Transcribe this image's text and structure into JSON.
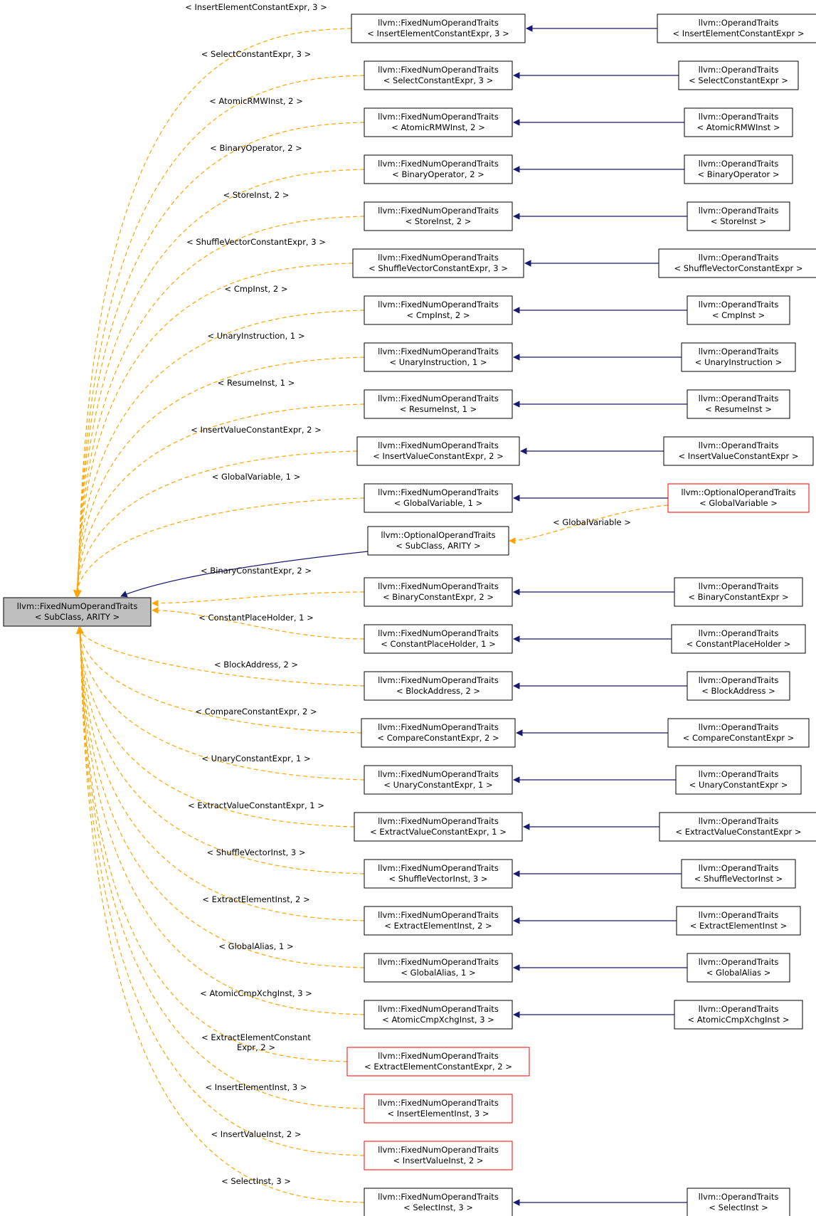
{
  "colors": {
    "background": "#ffffff",
    "root_fill": "#bfbfbf",
    "node_border": "#000000",
    "undocumented_border": "#ff0000",
    "template_edge": "#ffa500",
    "inherit_edge": "#191970"
  },
  "root": {
    "line1": "llvm::FixedNumOperandTraits",
    "line2": "< SubClass, ARITY >"
  },
  "optional": {
    "line1": "llvm::OptionalOperandTraits",
    "line2": "< SubClass, ARITY >"
  },
  "rows": [
    {
      "label": "< InsertElementConstantExpr, 3 >",
      "mid": [
        "llvm::FixedNumOperandTraits",
        "< InsertElementConstantExpr, 3 >"
      ],
      "right": [
        "llvm::OperandTraits",
        "< InsertElementConstantExpr >"
      ],
      "mid_red": false
    },
    {
      "label": "< SelectConstantExpr, 3 >",
      "mid": [
        "llvm::FixedNumOperandTraits",
        "< SelectConstantExpr, 3 >"
      ],
      "right": [
        "llvm::OperandTraits",
        "< SelectConstantExpr >"
      ],
      "mid_red": false
    },
    {
      "label": "< AtomicRMWInst, 2 >",
      "mid": [
        "llvm::FixedNumOperandTraits",
        "< AtomicRMWInst, 2 >"
      ],
      "right": [
        "llvm::OperandTraits",
        "< AtomicRMWInst >"
      ],
      "mid_red": false
    },
    {
      "label": "< BinaryOperator, 2 >",
      "mid": [
        "llvm::FixedNumOperandTraits",
        "< BinaryOperator, 2 >"
      ],
      "right": [
        "llvm::OperandTraits",
        "< BinaryOperator >"
      ],
      "mid_red": false
    },
    {
      "label": "< StoreInst, 2 >",
      "mid": [
        "llvm::FixedNumOperandTraits",
        "< StoreInst, 2 >"
      ],
      "right": [
        "llvm::OperandTraits",
        "< StoreInst >"
      ],
      "mid_red": false
    },
    {
      "label": "< ShuffleVectorConstantExpr, 3 >",
      "mid": [
        "llvm::FixedNumOperandTraits",
        "< ShuffleVectorConstantExpr, 3 >"
      ],
      "right": [
        "llvm::OperandTraits",
        "< ShuffleVectorConstantExpr >"
      ],
      "mid_red": false
    },
    {
      "label": "< CmpInst, 2 >",
      "mid": [
        "llvm::FixedNumOperandTraits",
        "< CmpInst, 2 >"
      ],
      "right": [
        "llvm::OperandTraits",
        "< CmpInst >"
      ],
      "mid_red": false
    },
    {
      "label": "< UnaryInstruction, 1 >",
      "mid": [
        "llvm::FixedNumOperandTraits",
        "< UnaryInstruction, 1 >"
      ],
      "right": [
        "llvm::OperandTraits",
        "< UnaryInstruction >"
      ],
      "mid_red": false
    },
    {
      "label": "< ResumeInst, 1 >",
      "mid": [
        "llvm::FixedNumOperandTraits",
        "< ResumeInst, 1 >"
      ],
      "right": [
        "llvm::OperandTraits",
        "< ResumeInst >"
      ],
      "mid_red": false
    },
    {
      "label": "< InsertValueConstantExpr, 2 >",
      "mid": [
        "llvm::FixedNumOperandTraits",
        "< InsertValueConstantExpr, 2 >"
      ],
      "right": [
        "llvm::OperandTraits",
        "< InsertValueConstantExpr >"
      ],
      "mid_red": false
    },
    {
      "label": "< GlobalVariable, 1 >",
      "mid": [
        "llvm::FixedNumOperandTraits",
        "< GlobalVariable, 1 >"
      ],
      "right": [
        "llvm::OptionalOperandTraits",
        "< GlobalVariable >"
      ],
      "mid_red": false,
      "right_red": true,
      "right_label": "< GlobalVariable >"
    },
    {
      "label": "< BinaryConstantExpr, 2 >",
      "mid": [
        "llvm::FixedNumOperandTraits",
        "< BinaryConstantExpr, 2 >"
      ],
      "right": [
        "llvm::OperandTraits",
        "< BinaryConstantExpr >"
      ],
      "mid_red": false
    },
    {
      "label": "< ConstantPlaceHolder, 1 >",
      "mid": [
        "llvm::FixedNumOperandTraits",
        "< ConstantPlaceHolder, 1 >"
      ],
      "right": [
        "llvm::OperandTraits",
        "< ConstantPlaceHolder >"
      ],
      "mid_red": false
    },
    {
      "label": "< BlockAddress, 2 >",
      "mid": [
        "llvm::FixedNumOperandTraits",
        "< BlockAddress, 2 >"
      ],
      "right": [
        "llvm::OperandTraits",
        "< BlockAddress >"
      ],
      "mid_red": false
    },
    {
      "label": "< CompareConstantExpr, 2 >",
      "mid": [
        "llvm::FixedNumOperandTraits",
        "< CompareConstantExpr, 2 >"
      ],
      "right": [
        "llvm::OperandTraits",
        "< CompareConstantExpr >"
      ],
      "mid_red": false
    },
    {
      "label": "< UnaryConstantExpr, 1 >",
      "mid": [
        "llvm::FixedNumOperandTraits",
        "< UnaryConstantExpr, 1 >"
      ],
      "right": [
        "llvm::OperandTraits",
        "< UnaryConstantExpr >"
      ],
      "mid_red": false
    },
    {
      "label": "< ExtractValueConstantExpr, 1 >",
      "mid": [
        "llvm::FixedNumOperandTraits",
        "< ExtractValueConstantExpr, 1 >"
      ],
      "right": [
        "llvm::OperandTraits",
        "< ExtractValueConstantExpr >"
      ],
      "mid_red": false
    },
    {
      "label": "< ShuffleVectorInst, 3 >",
      "mid": [
        "llvm::FixedNumOperandTraits",
        "< ShuffleVectorInst, 3 >"
      ],
      "right": [
        "llvm::OperandTraits",
        "< ShuffleVectorInst >"
      ],
      "mid_red": false
    },
    {
      "label": "< ExtractElementInst, 2 >",
      "mid": [
        "llvm::FixedNumOperandTraits",
        "< ExtractElementInst, 2 >"
      ],
      "right": [
        "llvm::OperandTraits",
        "< ExtractElementInst >"
      ],
      "mid_red": false
    },
    {
      "label": "< GlobalAlias, 1 >",
      "mid": [
        "llvm::FixedNumOperandTraits",
        "< GlobalAlias, 1 >"
      ],
      "right": [
        "llvm::OperandTraits",
        "< GlobalAlias >"
      ],
      "mid_red": false
    },
    {
      "label": "< AtomicCmpXchgInst, 3 >",
      "mid": [
        "llvm::FixedNumOperandTraits",
        "< AtomicCmpXchgInst, 3 >"
      ],
      "right": [
        "llvm::OperandTraits",
        "< AtomicCmpXchgInst >"
      ],
      "mid_red": false
    },
    {
      "label": "< ExtractElementConstant",
      "label2": "Expr, 2 >",
      "mid": [
        "llvm::FixedNumOperandTraits",
        "< ExtractElementConstantExpr, 2 >"
      ],
      "right": null,
      "mid_red": true
    },
    {
      "label": "< InsertElementInst, 3 >",
      "mid": [
        "llvm::FixedNumOperandTraits",
        "< InsertElementInst, 3 >"
      ],
      "right": null,
      "mid_red": true
    },
    {
      "label": "< InsertValueInst, 2 >",
      "mid": [
        "llvm::FixedNumOperandTraits",
        "< InsertValueInst, 2 >"
      ],
      "right": null,
      "mid_red": true
    },
    {
      "label": "< SelectInst, 3 >",
      "mid": [
        "llvm::FixedNumOperandTraits",
        "< SelectInst, 3 >"
      ],
      "right": [
        "llvm::OperandTraits",
        "< SelectInst >"
      ],
      "mid_red": false
    }
  ]
}
